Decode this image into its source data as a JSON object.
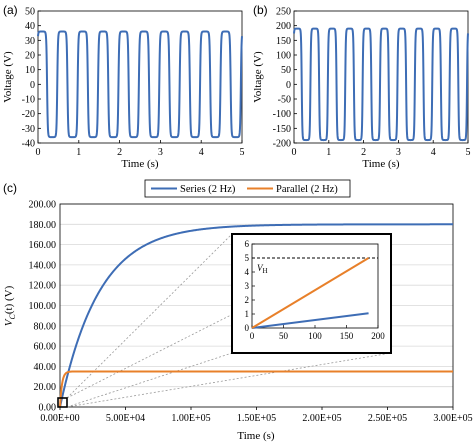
{
  "panels": {
    "a": "(a)",
    "b": "(b)",
    "c": "(c)"
  },
  "colors": {
    "series": "#3E6DB5",
    "parallel": "#E8802A",
    "grid": "#d9d9d9",
    "guide": "#9a9a9a"
  },
  "chart_data": [
    {
      "id": "a",
      "type": "line",
      "xlabel": "Time (s)",
      "ylabel": "Voltage (V)",
      "xlim": [
        0,
        5
      ],
      "ylim": [
        -40,
        50
      ],
      "xticks": [
        0,
        1,
        2,
        3,
        4,
        5
      ],
      "yticks": [
        -40,
        -30,
        -20,
        -10,
        0,
        10,
        20,
        30,
        40,
        50
      ],
      "frequency_hz": 2,
      "amplitude": 36,
      "grid": false,
      "series": [
        {
          "values_description_x": [
            0,
            5
          ]
        }
      ]
    },
    {
      "id": "b",
      "type": "line",
      "xlabel": "Time (s)",
      "ylabel": "Voltage (V)",
      "xlim": [
        0,
        5
      ],
      "ylim": [
        -200,
        250
      ],
      "xticks": [
        0,
        1,
        2,
        3,
        4,
        5
      ],
      "yticks": [
        -200,
        -150,
        -100,
        -50,
        0,
        50,
        100,
        150,
        200,
        250
      ],
      "frequency_hz": 2,
      "amplitude": 190,
      "grid": false
    },
    {
      "id": "c",
      "type": "line",
      "xlabel": "Time (s)",
      "ylabel": "V_C(t) (V)",
      "ylabel_main": "V",
      "ylabel_sub": "C",
      "ylabel_rest": "(t) (V)",
      "xlim": [
        0,
        300000
      ],
      "ylim": [
        0,
        200
      ],
      "xticks": [
        "0.00E+00",
        "5.00E+04",
        "1.00E+05",
        "1.50E+05",
        "2.00E+05",
        "2.50E+05",
        "3.00E+05"
      ],
      "xtick_values": [
        0,
        50000,
        100000,
        150000,
        200000,
        250000,
        300000
      ],
      "yticks": [
        "0.00",
        "20.00",
        "40.00",
        "60.00",
        "80.00",
        "100.00",
        "120.00",
        "140.00",
        "160.00",
        "180.00",
        "200.00"
      ],
      "ytick_values": [
        0,
        20,
        40,
        60,
        80,
        100,
        120,
        140,
        160,
        180,
        200
      ],
      "grid": true,
      "legend": "top",
      "series": [
        {
          "name": "Series (2 Hz)",
          "final_value": 180,
          "time_constant": 30000
        },
        {
          "name": "Parallel (2 Hz)",
          "final_value": 35,
          "time_constant": 1500
        }
      ],
      "inset": {
        "xlim": [
          0,
          200
        ],
        "ylim": [
          0,
          6
        ],
        "xticks": [
          0,
          50,
          100,
          150,
          200
        ],
        "yticks": [
          0,
          1,
          2,
          3,
          4,
          5,
          6
        ],
        "threshold": 5,
        "threshold_label_main": "V",
        "threshold_label_sub": "H",
        "series_points": [
          [
            0,
            0
          ],
          [
            185,
            1.05
          ]
        ],
        "parallel_points": [
          [
            0,
            0
          ],
          [
            185,
            5.0
          ]
        ]
      }
    }
  ]
}
